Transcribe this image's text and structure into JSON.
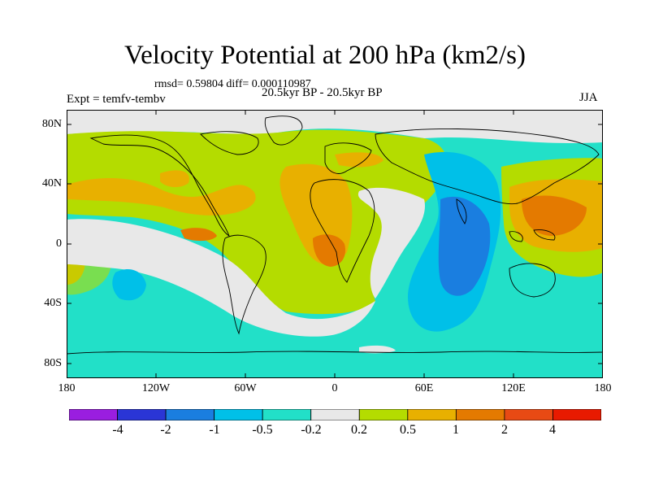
{
  "title": "Velocity Potential at 200 hPa (km2/s)",
  "stats": "rmsd= 0.59804 diff= 0.000110987",
  "period": "20.5kyr BP - 20.5kyr BP",
  "experiment": "Expt = temfv-tembv",
  "season": "JJA",
  "map": {
    "lat_labels": [
      "80N",
      "40N",
      "0",
      "40S",
      "80S"
    ],
    "lon_labels": [
      "180",
      "120W",
      "60W",
      "0",
      "60E",
      "120E",
      "180"
    ]
  },
  "colorbar": {
    "labels": [
      "-4",
      "-2",
      "-1",
      "-0.5",
      "-0.2",
      "0.2",
      "0.5",
      "1",
      "2",
      "4"
    ],
    "colors": [
      "#9a1ee0",
      "#2a35d6",
      "#1a7ee0",
      "#00c0e8",
      "#22e0c8",
      "#e8e8e8",
      "#b4dc00",
      "#e8b000",
      "#e47a00",
      "#e84a14",
      "#e81a00"
    ]
  },
  "colors": {
    "land_outline": "#000000",
    "map_frame": "#000000"
  }
}
